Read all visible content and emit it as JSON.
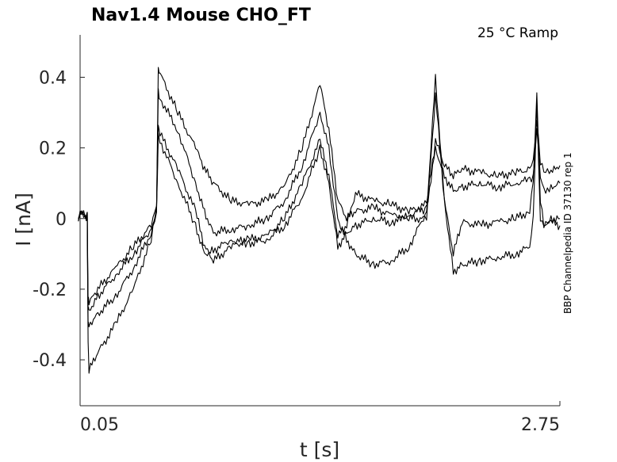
{
  "chart_data": {
    "type": "line",
    "title": "Nav1.4  Mouse  CHO_FT",
    "condition": "25 °C  Ramp",
    "side_label": "BBP Channelpedia ID 37130 rep 1",
    "xlabel": "t [s]",
    "ylabel": "I [nA]",
    "xlim": [
      0.05,
      2.75
    ],
    "ylim": [
      -0.53,
      0.52
    ],
    "xticks": [
      0.05,
      2.75
    ],
    "xtick_labels": [
      "0.05",
      "2.75"
    ],
    "yticks": [
      -0.4,
      -0.2,
      0,
      0.2,
      0.4
    ],
    "ytick_labels": [
      "-0.4",
      "-0.2",
      "0",
      "0.2",
      "0.4"
    ],
    "grid": false,
    "line_color": "#000000",
    "series": [
      {
        "x": [
          0.04,
          0.06,
          0.08,
          0.09,
          0.095,
          0.1,
          0.15,
          0.25,
          0.35,
          0.45,
          0.48,
          0.49,
          0.5,
          0.6,
          0.7,
          0.75,
          0.8,
          0.9,
          1.0,
          1.1,
          1.2,
          1.3,
          1.4,
          1.45,
          1.5,
          1.55,
          1.6,
          1.7,
          1.8,
          1.9,
          2.0,
          2.05,
          2.1,
          2.15,
          2.2,
          2.3,
          2.4,
          2.5,
          2.58,
          2.6,
          2.62,
          2.64,
          2.66,
          2.7,
          2.75
        ],
        "y": [
          0.0,
          0.02,
          0.0,
          0.01,
          -0.35,
          -0.43,
          -0.38,
          -0.3,
          -0.2,
          -0.06,
          0.02,
          0.42,
          0.41,
          0.3,
          0.2,
          0.14,
          0.1,
          0.05,
          0.04,
          0.05,
          0.09,
          0.2,
          0.38,
          0.25,
          0.05,
          0.0,
          0.02,
          0.03,
          0.01,
          0.0,
          0.0,
          0.35,
          0.05,
          -0.1,
          -0.01,
          -0.02,
          -0.01,
          0.0,
          0.02,
          0.1,
          0.35,
          0.05,
          -0.02,
          -0.01,
          -0.02
        ]
      },
      {
        "x": [
          0.04,
          0.06,
          0.08,
          0.09,
          0.095,
          0.1,
          0.15,
          0.25,
          0.35,
          0.45,
          0.48,
          0.49,
          0.5,
          0.6,
          0.7,
          0.75,
          0.8,
          0.9,
          1.0,
          1.1,
          1.2,
          1.3,
          1.4,
          1.45,
          1.5,
          1.55,
          1.6,
          1.7,
          1.8,
          1.9,
          2.0,
          2.05,
          2.1,
          2.15,
          2.2,
          2.3,
          2.4,
          2.5,
          2.58,
          2.6,
          2.62,
          2.64,
          2.66,
          2.7,
          2.75
        ],
        "y": [
          0.0,
          0.02,
          0.0,
          0.01,
          -0.29,
          -0.3,
          -0.27,
          -0.22,
          -0.14,
          -0.04,
          0.03,
          0.36,
          0.34,
          0.25,
          0.1,
          0.02,
          -0.04,
          -0.03,
          -0.02,
          0.0,
          0.05,
          0.15,
          0.3,
          0.2,
          0.0,
          -0.06,
          -0.1,
          -0.13,
          -0.12,
          -0.08,
          0.02,
          0.4,
          0.05,
          -0.15,
          -0.13,
          -0.12,
          -0.11,
          -0.1,
          -0.08,
          0.0,
          0.33,
          0.0,
          -0.02,
          0.0,
          0.0
        ]
      },
      {
        "x": [
          0.04,
          0.06,
          0.08,
          0.09,
          0.095,
          0.1,
          0.15,
          0.25,
          0.35,
          0.45,
          0.48,
          0.49,
          0.5,
          0.6,
          0.7,
          0.75,
          0.8,
          0.9,
          1.0,
          1.1,
          1.2,
          1.3,
          1.4,
          1.45,
          1.5,
          1.55,
          1.6,
          1.7,
          1.8,
          1.9,
          2.0,
          2.05,
          2.1,
          2.15,
          2.2,
          2.3,
          2.4,
          2.5,
          2.58,
          2.6,
          2.62,
          2.64,
          2.66,
          2.7,
          2.75
        ],
        "y": [
          0.0,
          0.02,
          0.0,
          0.01,
          -0.23,
          -0.24,
          -0.2,
          -0.14,
          -0.08,
          -0.02,
          0.03,
          0.26,
          0.24,
          0.14,
          0.02,
          -0.08,
          -0.12,
          -0.08,
          -0.06,
          -0.05,
          0.0,
          0.1,
          0.22,
          0.12,
          -0.05,
          -0.02,
          0.07,
          0.05,
          0.04,
          0.02,
          0.04,
          0.22,
          0.15,
          0.12,
          0.14,
          0.13,
          0.12,
          0.13,
          0.14,
          0.16,
          0.28,
          0.16,
          0.13,
          0.13,
          0.15
        ]
      },
      {
        "x": [
          0.04,
          0.06,
          0.08,
          0.09,
          0.095,
          0.1,
          0.15,
          0.25,
          0.35,
          0.45,
          0.48,
          0.49,
          0.5,
          0.6,
          0.7,
          0.75,
          0.8,
          0.9,
          1.0,
          1.1,
          1.2,
          1.3,
          1.4,
          1.45,
          1.5,
          1.55,
          1.6,
          1.7,
          1.8,
          1.9,
          2.0,
          2.05,
          2.1,
          2.15,
          2.2,
          2.3,
          2.4,
          2.5,
          2.58,
          2.6,
          2.62,
          2.64,
          2.66,
          2.7,
          2.75
        ],
        "y": [
          0.0,
          0.02,
          0.0,
          0.01,
          -0.25,
          -0.26,
          -0.22,
          -0.16,
          -0.1,
          -0.03,
          0.02,
          0.24,
          0.22,
          0.1,
          -0.02,
          -0.1,
          -0.09,
          -0.06,
          -0.07,
          -0.06,
          -0.02,
          0.06,
          0.2,
          0.1,
          -0.08,
          -0.04,
          -0.02,
          0.0,
          -0.01,
          0.01,
          0.03,
          0.2,
          0.12,
          0.08,
          0.09,
          0.1,
          0.09,
          0.1,
          0.11,
          0.12,
          0.26,
          0.12,
          0.08,
          0.09,
          0.1
        ]
      }
    ]
  }
}
